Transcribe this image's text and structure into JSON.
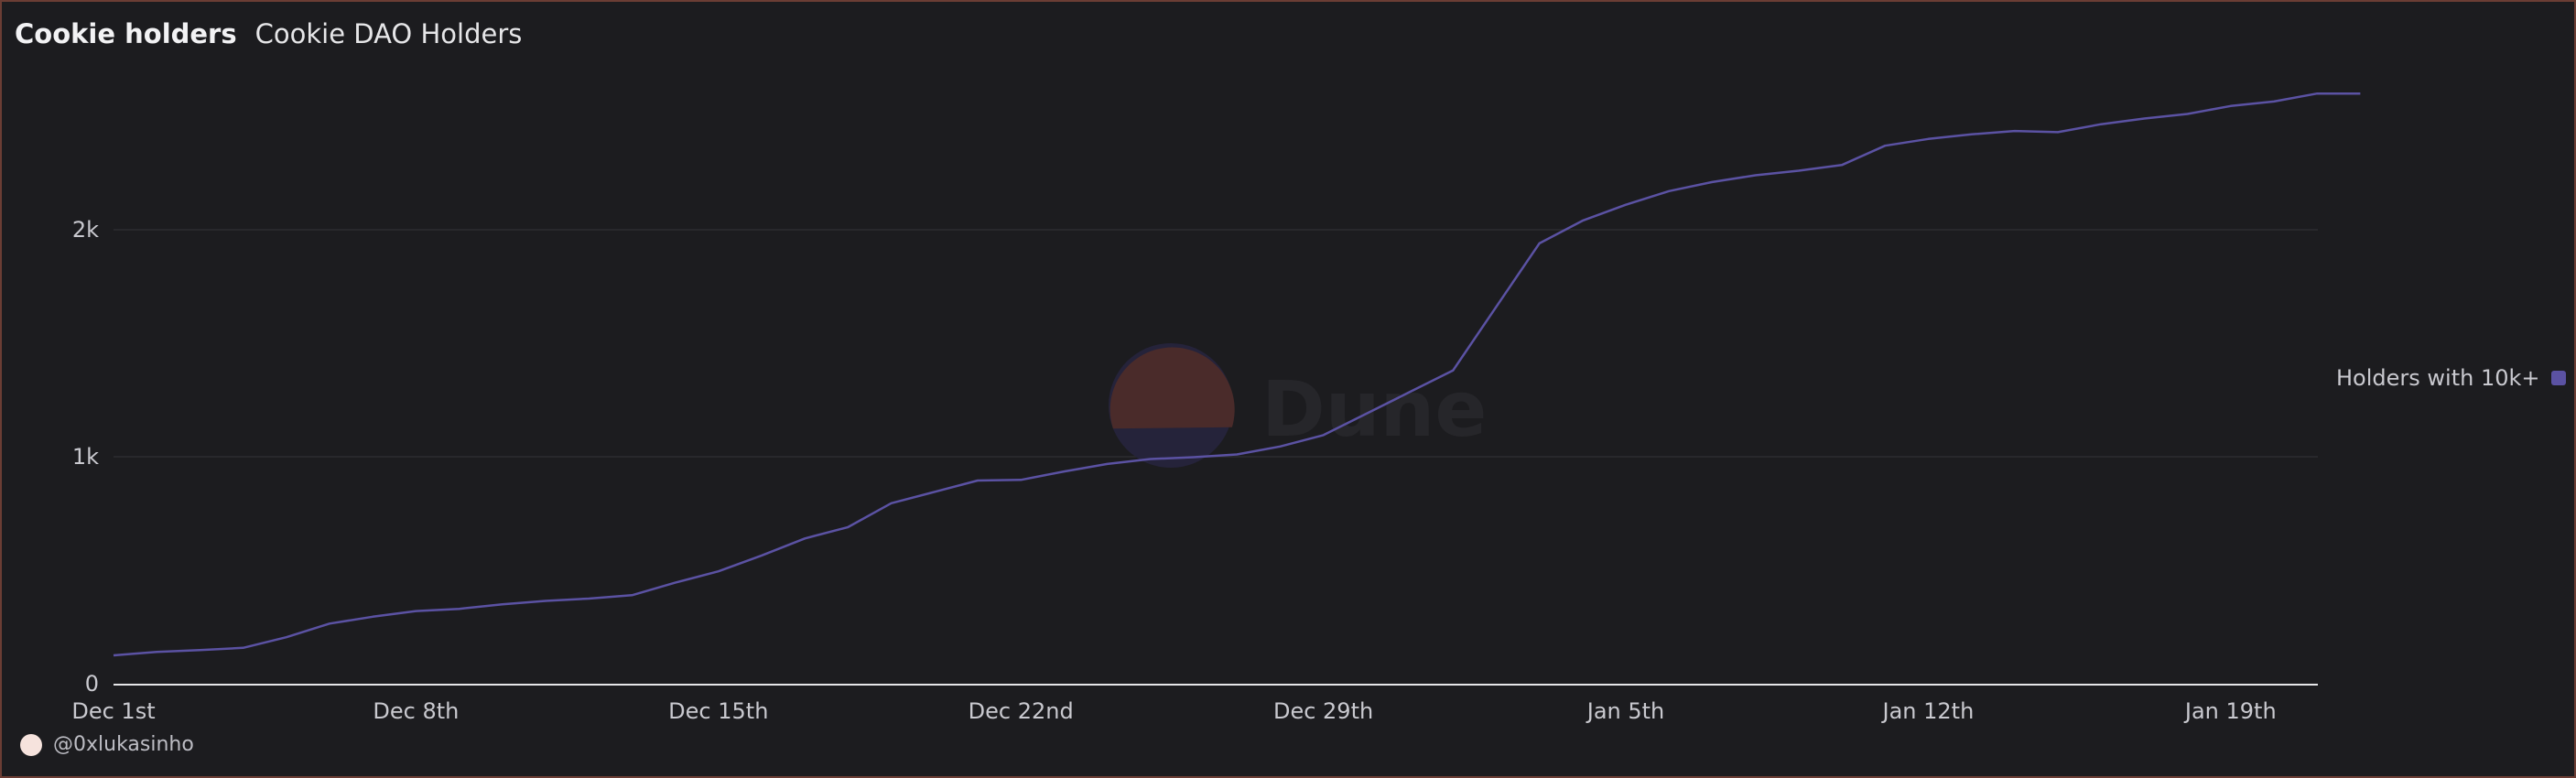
{
  "header": {
    "title": "Cookie holders",
    "subtitle": "Cookie DAO Holders"
  },
  "watermark": {
    "text": "Dune"
  },
  "author": {
    "handle": "@0xlukasinho"
  },
  "colors": {
    "background": "#1c1c1f",
    "series": "#5b52a3",
    "legend_swatch": "#5b52a3",
    "gridline": "#2c2c31",
    "axis": "#e6e6e8",
    "watermark_upper": "#4a2b2a",
    "watermark_lower": "#25233a"
  },
  "chart_data": {
    "type": "line",
    "title": "Cookie holders",
    "subtitle": "Cookie DAO Holders",
    "x_ticks": [
      "Dec 1st",
      "Dec 8th",
      "Dec 15th",
      "Dec 22nd",
      "Dec 29th",
      "Jan 5th",
      "Jan 12th",
      "Jan 19th"
    ],
    "y_ticks": [
      "0",
      "1k",
      "2k"
    ],
    "ylim": [
      0,
      2600
    ],
    "grid": true,
    "legend_position": "right",
    "series": [
      {
        "name": "Holders with 10k+",
        "x": [
          "2024-12-01",
          "2024-12-02",
          "2024-12-03",
          "2024-12-04",
          "2024-12-05",
          "2024-12-06",
          "2024-12-07",
          "2024-12-08",
          "2024-12-09",
          "2024-12-10",
          "2024-12-11",
          "2024-12-12",
          "2024-12-13",
          "2024-12-14",
          "2024-12-15",
          "2024-12-16",
          "2024-12-17",
          "2024-12-18",
          "2024-12-19",
          "2024-12-20",
          "2024-12-21",
          "2024-12-22",
          "2024-12-23",
          "2024-12-24",
          "2024-12-25",
          "2024-12-26",
          "2024-12-27",
          "2024-12-28",
          "2024-12-29",
          "2024-12-30",
          "2024-12-31",
          "2025-01-01",
          "2025-01-02",
          "2025-01-03",
          "2025-01-04",
          "2025-01-05",
          "2025-01-06",
          "2025-01-07",
          "2025-01-08",
          "2025-01-09",
          "2025-01-10",
          "2025-01-11",
          "2025-01-12",
          "2025-01-13",
          "2025-01-14",
          "2025-01-15",
          "2025-01-16",
          "2025-01-17",
          "2025-01-18",
          "2025-01-19",
          "2025-01-20",
          "2025-01-21",
          "2025-01-22"
        ],
        "values": [
          125,
          140,
          148,
          158,
          205,
          265,
          295,
          320,
          330,
          350,
          365,
          375,
          390,
          445,
          495,
          565,
          640,
          690,
          795,
          845,
          895,
          898,
          935,
          968,
          990,
          998,
          1010,
          1045,
          1095,
          1190,
          1285,
          1380,
          1660,
          1940,
          2040,
          2110,
          2170,
          2210,
          2240,
          2260,
          2285,
          2370,
          2400,
          2420,
          2435,
          2430,
          2465,
          2490,
          2510,
          2545,
          2565,
          2600,
          2600
        ]
      }
    ]
  }
}
